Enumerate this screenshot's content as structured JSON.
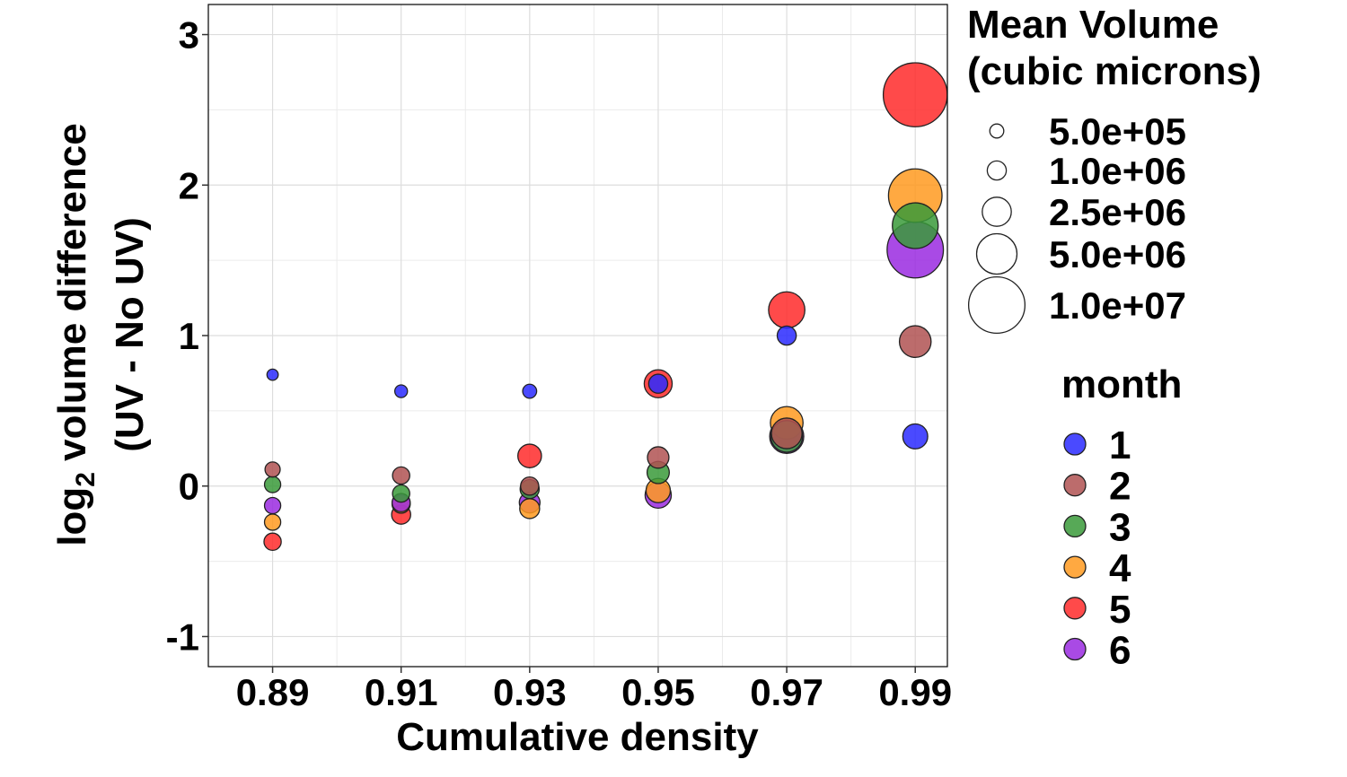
{
  "chart_data": {
    "type": "scatter",
    "xlabel": "Cumulative density",
    "ylabel": {
      "line1_prefix": "log",
      "line1_subscript": "2",
      "line1_suffix": " volume difference",
      "line2": "(UV - No UV)"
    },
    "xlim": [
      0.88,
      0.995
    ],
    "ylim": [
      -1.2,
      3.2
    ],
    "x_ticks": [
      0.89,
      0.91,
      0.93,
      0.95,
      0.97,
      0.99
    ],
    "x_tick_labels": [
      "0.89",
      "0.91",
      "0.93",
      "0.95",
      "0.97",
      "0.99"
    ],
    "y_ticks": [
      -1,
      0,
      1,
      2,
      3
    ],
    "y_tick_labels": [
      "-1",
      "0",
      "1",
      "2",
      "3"
    ],
    "grid": true,
    "legend_position": "right",
    "size_legend": {
      "title_lines": [
        "Mean Volume",
        "(cubic microns)"
      ],
      "entries": [
        {
          "label": "5.0e+05",
          "value": 500000
        },
        {
          "label": "1.0e+06",
          "value": 1000000
        },
        {
          "label": "2.5e+06",
          "value": 2500000
        },
        {
          "label": "5.0e+06",
          "value": 5000000
        },
        {
          "label": "1.0e+07",
          "value": 10000000
        }
      ]
    },
    "color_legend": {
      "title": "month",
      "entries": [
        {
          "label": "1",
          "color": "#2a2aff"
        },
        {
          "label": "2",
          "color": "#b05252"
        },
        {
          "label": "3",
          "color": "#3a9a3a"
        },
        {
          "label": "4",
          "color": "#ff9a20"
        },
        {
          "label": "5",
          "color": "#ff2a2a"
        },
        {
          "label": "6",
          "color": "#9a2ae0"
        }
      ]
    },
    "series": [
      {
        "name": "1",
        "color": "#2a2aff",
        "points": [
          {
            "x": 0.89,
            "y": 0.74,
            "size": 300000
          },
          {
            "x": 0.91,
            "y": 0.63,
            "size": 400000
          },
          {
            "x": 0.93,
            "y": 0.63,
            "size": 500000
          },
          {
            "x": 0.95,
            "y": 0.68,
            "size": 1000000
          },
          {
            "x": 0.97,
            "y": 1.0,
            "size": 1000000
          },
          {
            "x": 0.99,
            "y": 0.33,
            "size": 1800000
          }
        ]
      },
      {
        "name": "2",
        "color": "#b05252",
        "points": [
          {
            "x": 0.89,
            "y": 0.11,
            "size": 600000
          },
          {
            "x": 0.91,
            "y": 0.07,
            "size": 800000
          },
          {
            "x": 0.93,
            "y": 0.0,
            "size": 900000
          },
          {
            "x": 0.95,
            "y": 0.19,
            "size": 1300000
          },
          {
            "x": 0.97,
            "y": 0.35,
            "size": 2800000
          },
          {
            "x": 0.99,
            "y": 0.96,
            "size": 3000000
          }
        ]
      },
      {
        "name": "3",
        "color": "#3a9a3a",
        "points": [
          {
            "x": 0.89,
            "y": 0.01,
            "size": 700000
          },
          {
            "x": 0.91,
            "y": -0.05,
            "size": 800000
          },
          {
            "x": 0.93,
            "y": -0.02,
            "size": 1000000
          },
          {
            "x": 0.95,
            "y": 0.09,
            "size": 1400000
          },
          {
            "x": 0.97,
            "y": 0.33,
            "size": 3000000
          },
          {
            "x": 0.99,
            "y": 1.73,
            "size": 6500000
          }
        ]
      },
      {
        "name": "4",
        "color": "#ff9a20",
        "points": [
          {
            "x": 0.89,
            "y": -0.24,
            "size": 700000
          },
          {
            "x": 0.91,
            "y": -0.12,
            "size": 900000
          },
          {
            "x": 0.93,
            "y": -0.15,
            "size": 1100000
          },
          {
            "x": 0.95,
            "y": -0.03,
            "size": 1700000
          },
          {
            "x": 0.97,
            "y": 0.42,
            "size": 3200000
          },
          {
            "x": 0.99,
            "y": 1.93,
            "size": 9000000
          }
        ]
      },
      {
        "name": "5",
        "color": "#ff2a2a",
        "points": [
          {
            "x": 0.89,
            "y": -0.37,
            "size": 800000
          },
          {
            "x": 0.91,
            "y": -0.19,
            "size": 1000000
          },
          {
            "x": 0.93,
            "y": 0.2,
            "size": 1600000
          },
          {
            "x": 0.95,
            "y": 0.68,
            "size": 2300000
          },
          {
            "x": 0.97,
            "y": 1.17,
            "size": 4000000
          },
          {
            "x": 0.99,
            "y": 2.6,
            "size": 13000000
          }
        ]
      },
      {
        "name": "6",
        "color": "#9a2ae0",
        "points": [
          {
            "x": 0.89,
            "y": -0.13,
            "size": 700000
          },
          {
            "x": 0.91,
            "y": -0.11,
            "size": 900000
          },
          {
            "x": 0.93,
            "y": -0.11,
            "size": 1200000
          },
          {
            "x": 0.95,
            "y": -0.06,
            "size": 2000000
          },
          {
            "x": 0.97,
            "y": 0.33,
            "size": 3500000
          },
          {
            "x": 0.99,
            "y": 1.57,
            "size": 10000000
          }
        ]
      }
    ]
  }
}
